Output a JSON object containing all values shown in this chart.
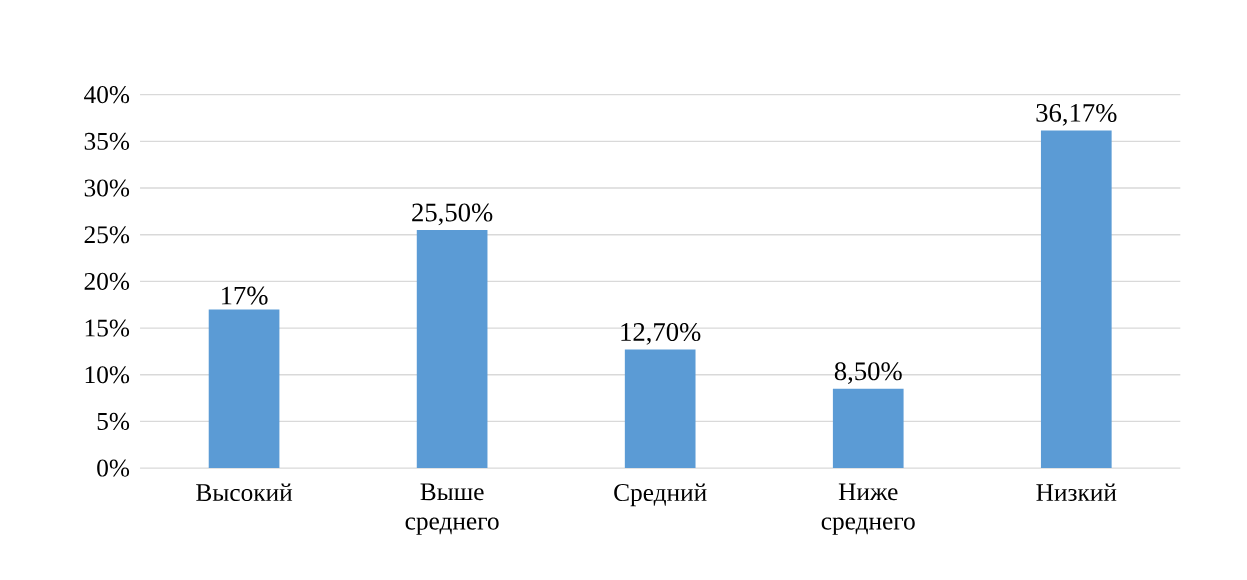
{
  "chart_data": {
    "type": "bar",
    "categories": [
      "Высокий",
      "Выше среднего",
      "Средний",
      "Ниже среднего",
      "Низкий"
    ],
    "values": [
      17,
      25.5,
      12.7,
      8.5,
      36.17
    ],
    "value_labels": [
      "17%",
      "25,50%",
      "12,70%",
      "8,50%",
      "36,17%"
    ],
    "color": "#5b9bd5",
    "ylim": [
      0,
      40
    ],
    "yticks": [
      {
        "value": 0,
        "label": "0%"
      },
      {
        "value": 5,
        "label": "5%"
      },
      {
        "value": 10,
        "label": "10%"
      },
      {
        "value": 15,
        "label": "15%"
      },
      {
        "value": 20,
        "label": "20%"
      },
      {
        "value": 25,
        "label": "25%"
      },
      {
        "value": 30,
        "label": "30%"
      },
      {
        "value": 35,
        "label": "35%"
      },
      {
        "value": 40,
        "label": "40%"
      }
    ],
    "grid": "y"
  }
}
